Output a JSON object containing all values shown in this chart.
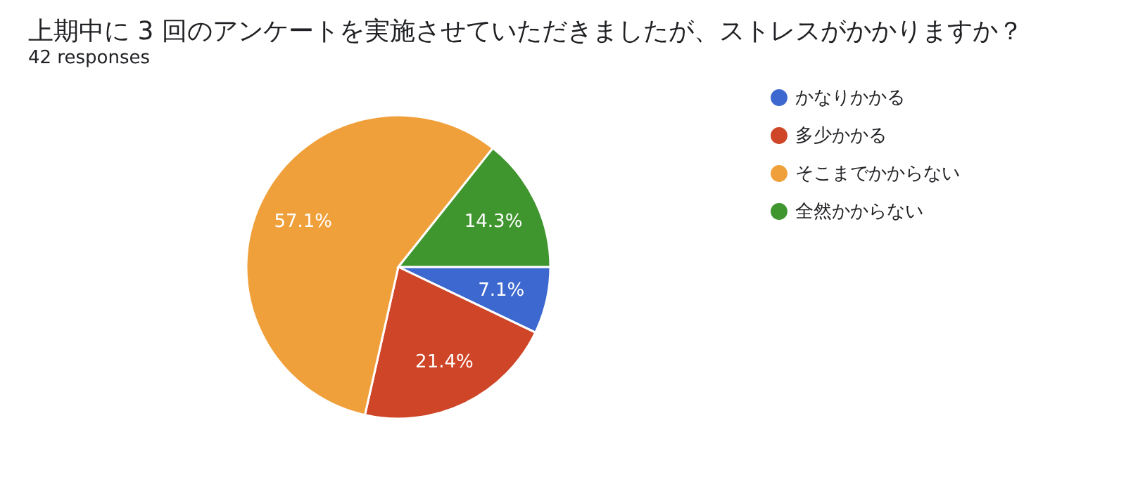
{
  "chart_data": {
    "type": "pie",
    "title": "上期中に 3 回のアンケートを実施させていただきましたが、ストレスがかかりますか？",
    "subtitle": "42 responses",
    "categories": [
      "かなりかかる",
      "多少かかる",
      "そこまでかからない",
      "全然かからない"
    ],
    "values": [
      7.1,
      21.4,
      57.1,
      14.3
    ],
    "colors": [
      "#3d68d0",
      "#cf4527",
      "#f0a03a",
      "#3f952e"
    ],
    "value_labels": [
      "7.1%",
      "21.4%",
      "57.1%",
      "14.3%"
    ],
    "legend": "right"
  }
}
